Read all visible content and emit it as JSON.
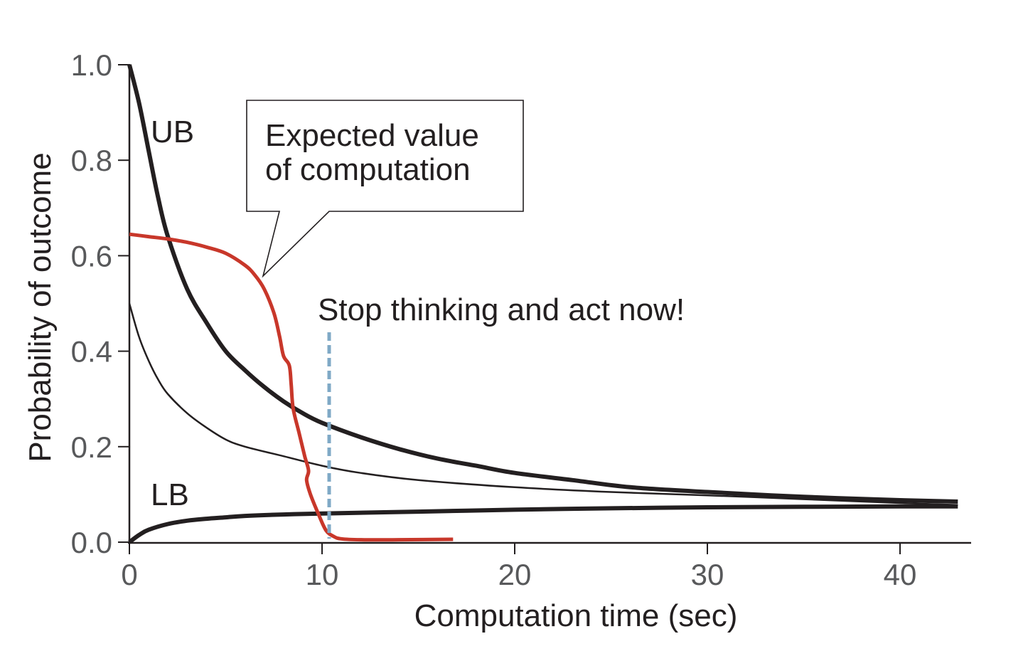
{
  "chart_data": {
    "type": "line",
    "title": "",
    "xlabel": "Computation time (sec)",
    "ylabel": "Probability of outcome",
    "xlim": [
      0,
      43.5
    ],
    "ylim": [
      0,
      1.0
    ],
    "x_ticks": [
      0,
      10,
      20,
      30,
      40
    ],
    "x_tick_labels": [
      "0",
      "10",
      "20",
      "30",
      "40"
    ],
    "y_ticks": [
      0.0,
      0.2,
      0.4,
      0.6,
      0.8,
      1.0
    ],
    "y_tick_labels": [
      "0.0",
      "0.2",
      "0.4",
      "0.6",
      "0.8",
      "1.0"
    ],
    "grid": false,
    "legend": "none (inline labels)",
    "series": [
      {
        "name": "UB",
        "label": "UB",
        "style": "thick black",
        "color": "#231f20",
        "x": [
          0,
          0.5,
          1,
          1.5,
          2,
          3,
          4,
          5,
          6,
          7,
          8,
          9,
          10,
          12,
          14,
          16,
          18,
          20,
          23,
          26,
          30,
          35,
          40,
          43
        ],
        "y": [
          1.0,
          0.92,
          0.82,
          0.72,
          0.64,
          0.53,
          0.46,
          0.4,
          0.36,
          0.325,
          0.295,
          0.27,
          0.25,
          0.22,
          0.195,
          0.175,
          0.16,
          0.145,
          0.13,
          0.115,
          0.105,
          0.095,
          0.088,
          0.085
        ]
      },
      {
        "name": "Middle estimate",
        "label": "",
        "style": "thin black",
        "color": "#231f20",
        "x": [
          0,
          0.5,
          1,
          1.5,
          2,
          3,
          4,
          5,
          6,
          8,
          10,
          12,
          15,
          20,
          25,
          30,
          35,
          40,
          43
        ],
        "y": [
          0.5,
          0.43,
          0.38,
          0.34,
          0.31,
          0.27,
          0.24,
          0.215,
          0.2,
          0.18,
          0.16,
          0.145,
          0.13,
          0.115,
          0.105,
          0.098,
          0.09,
          0.082,
          0.078
        ]
      },
      {
        "name": "LB",
        "label": "LB",
        "style": "thick black",
        "color": "#231f20",
        "x": [
          0,
          0.5,
          1,
          2,
          3,
          4,
          5,
          6,
          8,
          10,
          15,
          20,
          25,
          30,
          35,
          40,
          43
        ],
        "y": [
          0.0,
          0.015,
          0.026,
          0.038,
          0.045,
          0.049,
          0.052,
          0.055,
          0.058,
          0.06,
          0.064,
          0.068,
          0.071,
          0.073,
          0.074,
          0.075,
          0.075
        ]
      },
      {
        "name": "Expected value of computation",
        "label": "Expected value of computation",
        "style": "red",
        "color": "#c8372a",
        "x": [
          0,
          1,
          2,
          3,
          4,
          5,
          6,
          6.5,
          7,
          7.5,
          7.8,
          8.0,
          8.3,
          8.4,
          8.5,
          8.8,
          9.1,
          9.3,
          9.2,
          9.4,
          9.8,
          10.2,
          10.6,
          11,
          12,
          14,
          16.8
        ],
        "y": [
          0.645,
          0.64,
          0.635,
          0.628,
          0.618,
          0.605,
          0.58,
          0.56,
          0.53,
          0.48,
          0.43,
          0.39,
          0.37,
          0.33,
          0.28,
          0.23,
          0.18,
          0.15,
          0.13,
          0.1,
          0.06,
          0.025,
          0.012,
          0.007,
          0.005,
          0.005,
          0.006
        ]
      }
    ],
    "annotations": [
      {
        "text": "UB",
        "x": 1.2,
        "y": 0.86
      },
      {
        "text": "LB",
        "x": 1.2,
        "y": 0.1
      },
      {
        "text": "Expected value of computation",
        "type": "callout box",
        "points_to": {
          "x": 7.0,
          "y": 0.55
        }
      },
      {
        "text": "Stop thinking and act now!",
        "x": 10.0,
        "y": 0.47
      },
      {
        "type": "vertical dashed line",
        "x": 10.4,
        "color": "#7fa9c6",
        "y_range": [
          0.0,
          0.44
        ]
      }
    ]
  },
  "labels": {
    "ub": "UB",
    "lb": "LB",
    "callout_line1": "Expected value",
    "callout_line2": "of computation",
    "stop": "Stop thinking and act now!",
    "xlabel": "Computation time (sec)",
    "ylabel": "Probability of outcome"
  },
  "colors": {
    "line": "#231f20",
    "evc": "#c8372a",
    "dashed": "#7fa9c6",
    "tick_text": "#58595b"
  }
}
